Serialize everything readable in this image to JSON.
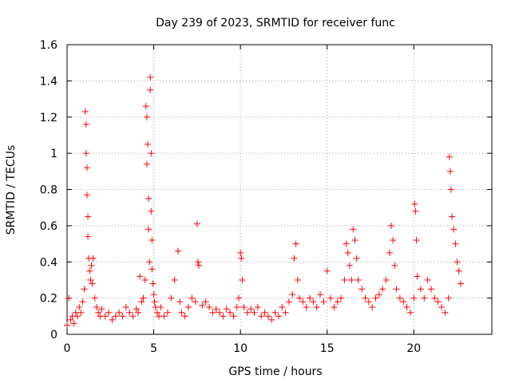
{
  "chart_data": {
    "type": "scatter",
    "title": "Day 239 of 2023, SRMTID for receiver func",
    "xlabel": "GPS time / hours",
    "ylabel": "SRMTID / TECUs",
    "xlim": [
      0,
      24.5
    ],
    "ylim": [
      0,
      1.6
    ],
    "xticks": [
      0,
      5,
      10,
      15,
      20
    ],
    "xtick_labels": [
      "0",
      "5",
      "10",
      "15",
      "20"
    ],
    "yticks": [
      0,
      0.2,
      0.4,
      0.6,
      0.8,
      1.0,
      1.2,
      1.4,
      1.6
    ],
    "ytick_labels": [
      "0",
      "0.2",
      "0.4",
      "0.6",
      "0.8",
      "1",
      "1.2",
      "1.4",
      "1.6"
    ],
    "grid": true,
    "marker": "+",
    "color": "#ff0000",
    "series": [
      {
        "name": "SRMTID",
        "x": [
          0.0,
          0.1,
          0.2,
          0.3,
          0.4,
          0.5,
          0.6,
          0.7,
          0.8,
          0.9,
          1.0,
          1.05,
          1.1,
          1.1,
          1.15,
          1.15,
          1.2,
          1.2,
          1.25,
          1.3,
          1.35,
          1.4,
          1.45,
          1.5,
          1.6,
          1.7,
          1.8,
          1.9,
          2.0,
          2.2,
          2.4,
          2.6,
          2.8,
          3.0,
          3.2,
          3.4,
          3.6,
          3.8,
          4.0,
          4.1,
          4.2,
          4.3,
          4.4,
          4.5,
          4.55,
          4.6,
          4.6,
          4.65,
          4.7,
          4.7,
          4.75,
          4.8,
          4.8,
          4.85,
          4.85,
          4.9,
          4.9,
          4.95,
          5.0,
          5.05,
          5.1,
          5.2,
          5.3,
          5.4,
          5.6,
          5.8,
          6.0,
          6.2,
          6.4,
          6.5,
          6.6,
          6.8,
          7.0,
          7.2,
          7.4,
          7.5,
          7.55,
          7.6,
          7.8,
          8.0,
          8.2,
          8.4,
          8.6,
          8.8,
          9.0,
          9.2,
          9.4,
          9.6,
          9.8,
          9.9,
          10.0,
          10.05,
          10.1,
          10.2,
          10.4,
          10.6,
          10.8,
          11.0,
          11.2,
          11.4,
          11.6,
          11.8,
          12.0,
          12.2,
          12.4,
          12.6,
          12.8,
          13.0,
          13.1,
          13.2,
          13.3,
          13.4,
          13.6,
          13.8,
          14.0,
          14.2,
          14.4,
          14.6,
          14.8,
          15.0,
          15.2,
          15.4,
          15.6,
          15.8,
          16.0,
          16.1,
          16.2,
          16.3,
          16.4,
          16.5,
          16.6,
          16.7,
          16.8,
          17.0,
          17.2,
          17.4,
          17.6,
          17.8,
          18.0,
          18.2,
          18.4,
          18.6,
          18.7,
          18.8,
          18.9,
          19.0,
          19.2,
          19.4,
          19.6,
          19.8,
          20.0,
          20.05,
          20.1,
          20.15,
          20.2,
          20.4,
          20.6,
          20.8,
          21.0,
          21.2,
          21.4,
          21.6,
          21.8,
          22.0,
          22.05,
          22.1,
          22.15,
          22.2,
          22.3,
          22.4,
          22.5,
          22.6,
          22.7
        ],
        "y": [
          0.05,
          0.2,
          0.08,
          0.1,
          0.06,
          0.12,
          0.1,
          0.15,
          0.12,
          0.18,
          0.25,
          1.23,
          1.16,
          1.0,
          0.92,
          0.77,
          0.65,
          0.54,
          0.42,
          0.35,
          0.3,
          0.38,
          0.28,
          0.42,
          0.2,
          0.15,
          0.12,
          0.1,
          0.14,
          0.1,
          0.12,
          0.08,
          0.1,
          0.12,
          0.1,
          0.15,
          0.12,
          0.1,
          0.14,
          0.12,
          0.32,
          0.18,
          0.2,
          0.3,
          1.26,
          1.2,
          0.94,
          1.05,
          0.75,
          0.58,
          0.4,
          1.42,
          1.35,
          1.0,
          0.68,
          0.52,
          0.36,
          0.28,
          0.22,
          0.18,
          0.15,
          0.12,
          0.1,
          0.15,
          0.1,
          0.12,
          0.2,
          0.3,
          0.46,
          0.18,
          0.12,
          0.1,
          0.15,
          0.2,
          0.18,
          0.61,
          0.4,
          0.38,
          0.16,
          0.18,
          0.15,
          0.12,
          0.14,
          0.12,
          0.1,
          0.14,
          0.12,
          0.1,
          0.15,
          0.2,
          0.45,
          0.42,
          0.3,
          0.15,
          0.12,
          0.14,
          0.12,
          0.15,
          0.1,
          0.12,
          0.1,
          0.08,
          0.12,
          0.1,
          0.15,
          0.12,
          0.18,
          0.22,
          0.42,
          0.5,
          0.3,
          0.2,
          0.18,
          0.15,
          0.2,
          0.18,
          0.15,
          0.22,
          0.18,
          0.35,
          0.2,
          0.15,
          0.18,
          0.2,
          0.3,
          0.5,
          0.45,
          0.38,
          0.3,
          0.58,
          0.52,
          0.42,
          0.3,
          0.25,
          0.2,
          0.18,
          0.15,
          0.2,
          0.22,
          0.25,
          0.3,
          0.45,
          0.6,
          0.52,
          0.38,
          0.25,
          0.2,
          0.18,
          0.15,
          0.12,
          0.2,
          0.72,
          0.68,
          0.52,
          0.32,
          0.25,
          0.2,
          0.3,
          0.25,
          0.2,
          0.18,
          0.15,
          0.12,
          0.2,
          0.98,
          0.9,
          0.8,
          0.65,
          0.58,
          0.5,
          0.4,
          0.35,
          0.28
        ]
      }
    ]
  }
}
